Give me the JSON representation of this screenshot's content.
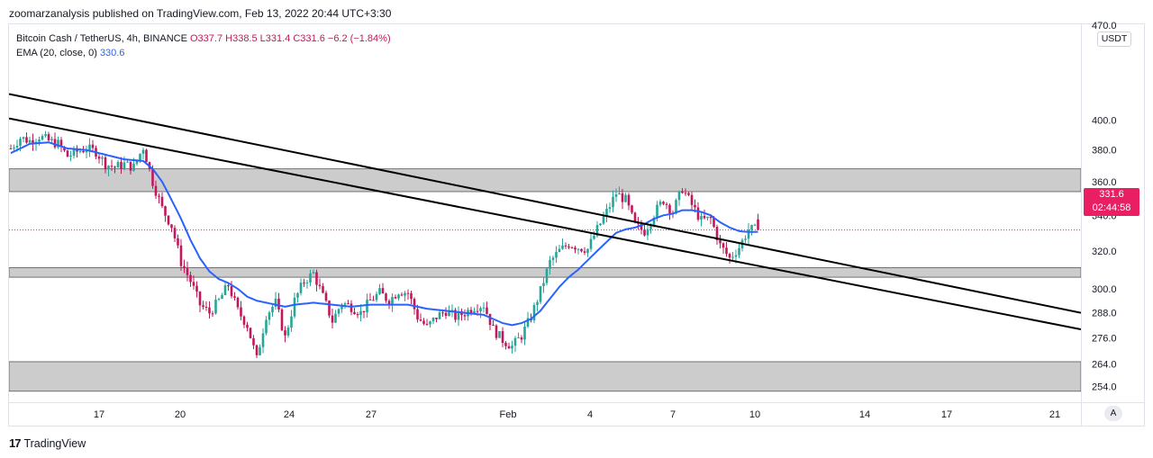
{
  "publisher_line": "zoomarzanalysis published on TradingView.com, Feb 13, 2022 20:44 UTC+3:30",
  "legend": {
    "symbol": "Bitcoin Cash / TetherUS, 4h, BINANCE",
    "ohlc": "O337.7 H338.5 L331.4 C331.6 −6.2 (−1.84%)",
    "ema_label": "EMA (20, close, 0)",
    "ema_value": "330.6"
  },
  "unit": "USDT",
  "last_price": "331.6",
  "countdown": "02:44:58",
  "auto_label": "A",
  "brand": {
    "logo_text": "17",
    "name": "TradingView"
  },
  "colors": {
    "bull": "#26a69a",
    "bear": "#c2185b",
    "ema": "#2962ff",
    "zone": "#cccccc",
    "trendline": "#000000",
    "price_line": "#e91e63"
  },
  "chart_data": {
    "type": "candlestick",
    "timeframe": "4h",
    "x_tick_labels": [
      "17",
      "20",
      "24",
      "27",
      "Feb",
      "4",
      "7",
      "10",
      "14",
      "17",
      "21"
    ],
    "y_tick_labels": [
      "470.0",
      "400.0",
      "380.0",
      "360.0",
      "340.0",
      "320.0",
      "300.0",
      "288.0",
      "276.0",
      "264.0",
      "254.0"
    ],
    "y_axis_scale": "log",
    "ylim": [
      250,
      470
    ],
    "last_close": 331.6,
    "close_path": [
      [
        0,
        381
      ],
      [
        3,
        388
      ],
      [
        6,
        386
      ],
      [
        9,
        389
      ],
      [
        12,
        386
      ],
      [
        15,
        384
      ],
      [
        18,
        376
      ],
      [
        21,
        379
      ],
      [
        24,
        381
      ],
      [
        27,
        379
      ],
      [
        30,
        371
      ],
      [
        33,
        369
      ],
      [
        36,
        371
      ],
      [
        39,
        369
      ],
      [
        42,
        382
      ],
      [
        45,
        360
      ],
      [
        48,
        344
      ],
      [
        51,
        334
      ],
      [
        54,
        314
      ],
      [
        57,
        304
      ],
      [
        60,
        292
      ],
      [
        63,
        288
      ],
      [
        66,
        294
      ],
      [
        69,
        302
      ],
      [
        72,
        289
      ],
      [
        75,
        282
      ],
      [
        78,
        266
      ],
      [
        81,
        287
      ],
      [
        84,
        293
      ],
      [
        87,
        276
      ],
      [
        90,
        294
      ],
      [
        93,
        304
      ],
      [
        96,
        308
      ],
      [
        99,
        296
      ],
      [
        102,
        284
      ],
      [
        105,
        293
      ],
      [
        108,
        291
      ],
      [
        111,
        288
      ],
      [
        114,
        294
      ],
      [
        117,
        298
      ],
      [
        120,
        294
      ],
      [
        123,
        299
      ],
      [
        126,
        298
      ],
      [
        129,
        286
      ],
      [
        132,
        281
      ],
      [
        135,
        286
      ],
      [
        138,
        289
      ],
      [
        141,
        286
      ],
      [
        144,
        288
      ],
      [
        147,
        291
      ],
      [
        150,
        292
      ],
      [
        153,
        280
      ],
      [
        156,
        275
      ],
      [
        159,
        272
      ],
      [
        162,
        277
      ],
      [
        165,
        286
      ],
      [
        168,
        299
      ],
      [
        171,
        314
      ],
      [
        174,
        320
      ],
      [
        177,
        324
      ],
      [
        180,
        322
      ],
      [
        183,
        321
      ],
      [
        186,
        332
      ],
      [
        189,
        342
      ],
      [
        192,
        353
      ],
      [
        195,
        349
      ],
      [
        198,
        334
      ],
      [
        201,
        331
      ],
      [
        204,
        341
      ],
      [
        207,
        349
      ],
      [
        210,
        342
      ],
      [
        213,
        356
      ],
      [
        216,
        346
      ],
      [
        219,
        337
      ],
      [
        222,
        338
      ],
      [
        225,
        323
      ],
      [
        228,
        316
      ],
      [
        231,
        322
      ],
      [
        234,
        332
      ],
      [
        237,
        331.6
      ]
    ],
    "ema": {
      "name": "EMA (20, close, 0)",
      "last": 330.6,
      "path": [
        [
          0,
          378
        ],
        [
          6,
          384
        ],
        [
          12,
          385
        ],
        [
          18,
          381
        ],
        [
          24,
          380
        ],
        [
          30,
          377
        ],
        [
          36,
          374
        ],
        [
          42,
          373
        ],
        [
          45,
          368
        ],
        [
          48,
          360
        ],
        [
          51,
          349
        ],
        [
          54,
          338
        ],
        [
          57,
          326
        ],
        [
          60,
          316
        ],
        [
          63,
          309
        ],
        [
          66,
          305
        ],
        [
          69,
          303
        ],
        [
          72,
          300
        ],
        [
          75,
          296
        ],
        [
          78,
          294
        ],
        [
          81,
          293
        ],
        [
          84,
          292
        ],
        [
          87,
          291
        ],
        [
          90,
          292
        ],
        [
          96,
          293
        ],
        [
          102,
          292
        ],
        [
          108,
          291
        ],
        [
          114,
          292
        ],
        [
          120,
          292
        ],
        [
          126,
          292
        ],
        [
          132,
          290
        ],
        [
          138,
          289
        ],
        [
          144,
          288
        ],
        [
          150,
          287
        ],
        [
          153,
          285
        ],
        [
          156,
          283
        ],
        [
          159,
          282
        ],
        [
          162,
          283
        ],
        [
          165,
          285
        ],
        [
          168,
          289
        ],
        [
          171,
          295
        ],
        [
          174,
          301
        ],
        [
          177,
          306
        ],
        [
          180,
          310
        ],
        [
          183,
          315
        ],
        [
          186,
          320
        ],
        [
          189,
          325
        ],
        [
          192,
          330
        ],
        [
          195,
          332
        ],
        [
          198,
          333
        ],
        [
          201,
          335
        ],
        [
          204,
          338
        ],
        [
          207,
          340
        ],
        [
          210,
          341
        ],
        [
          213,
          343
        ],
        [
          216,
          343
        ],
        [
          219,
          342
        ],
        [
          222,
          340
        ],
        [
          225,
          336
        ],
        [
          228,
          333
        ],
        [
          231,
          331
        ],
        [
          234,
          330.5
        ],
        [
          237,
          330.6
        ]
      ]
    },
    "zones": [
      {
        "y1": 354,
        "y2": 368
      },
      {
        "y1": 306,
        "y2": 311
      },
      {
        "y1": 252,
        "y2": 265
      }
    ],
    "trendlines": [
      {
        "x1": 0,
        "y1": 418,
        "x2": 322,
        "y2": 288
      },
      {
        "x1": 0,
        "y1": 401,
        "x2": 322,
        "y2": 280
      }
    ]
  }
}
